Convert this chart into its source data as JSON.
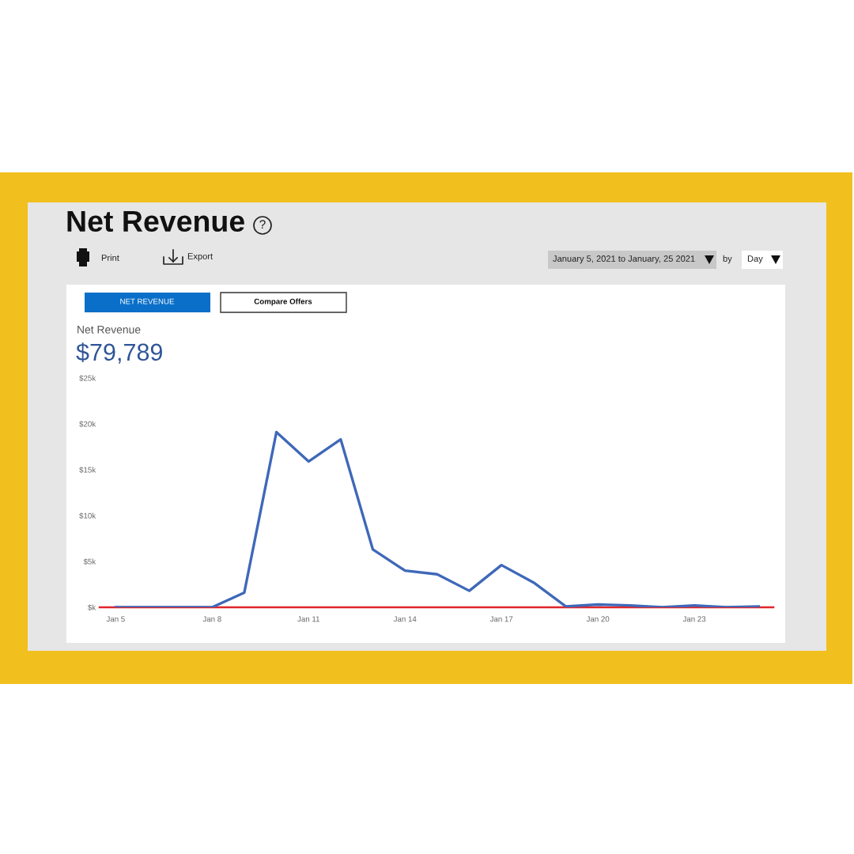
{
  "chart_data": {
    "type": "line",
    "title": "Net Revenue",
    "x": [
      "2021-01-05",
      "2021-01-06",
      "2021-01-07",
      "2021-01-08",
      "2021-01-09",
      "2021-01-10",
      "2021-01-11",
      "2021-01-12",
      "2021-01-13",
      "2021-01-14",
      "2021-01-15",
      "2021-01-16",
      "2021-01-17",
      "2021-01-18",
      "2021-01-19",
      "2021-01-20",
      "2021-01-21",
      "2021-01-22",
      "2021-01-23",
      "2021-01-24",
      "2021-01-25"
    ],
    "series": [
      {
        "color": "#3f68b8",
        "values": [
          0,
          0,
          0,
          0,
          1600,
          19100,
          15900,
          18300,
          6300,
          4000,
          3600,
          1800,
          4600,
          2700,
          100,
          300,
          200,
          0,
          200,
          0,
          100
        ]
      }
    ],
    "xlim": [
      "2021-01-04T12:00",
      "2021-01-25T11:00"
    ],
    "xticks": [
      {
        "value": "2021-01-05",
        "label": "Jan 5"
      },
      {
        "value": "2021-01-08",
        "label": "Jan 8"
      },
      {
        "value": "2021-01-11",
        "label": "Jan 11"
      },
      {
        "value": "2021-01-14",
        "label": "Jan 14"
      },
      {
        "value": "2021-01-17",
        "label": "Jan 17"
      },
      {
        "value": "2021-01-20",
        "label": "Jan 20"
      },
      {
        "value": "2021-01-23",
        "label": "Jan 23"
      }
    ],
    "ylim": [
      0,
      25000
    ],
    "yticks": [
      {
        "value": 0,
        "label": "$k"
      },
      {
        "value": 5000,
        "label": "$5k"
      },
      {
        "value": 10000,
        "label": "$10k"
      },
      {
        "value": 15000,
        "label": "$15k"
      },
      {
        "value": 20000,
        "label": "$20k"
      },
      {
        "value": 25000,
        "label": "$25k"
      }
    ],
    "grid": false,
    "legend": false,
    "marker": "none",
    "line_style": "solid",
    "annotations": [
      "?",
      "Print",
      "Export",
      "January 5, 2021 to January, 25 2021",
      "by",
      "Day",
      "NET REVENUE",
      "Compare Offers",
      "Net Revenue",
      "$79,789"
    ]
  }
}
